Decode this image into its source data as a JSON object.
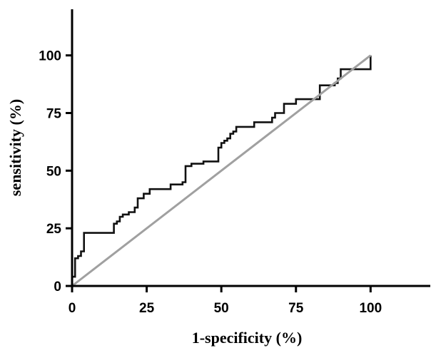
{
  "chart_data": {
    "type": "line",
    "xlabel": "1-specificity (%)",
    "ylabel": "sensitivity (%)",
    "xlim": [
      0,
      120
    ],
    "ylim": [
      0,
      120
    ],
    "xticks": [
      0,
      25,
      50,
      75,
      100
    ],
    "yticks": [
      0,
      25,
      50,
      75,
      100
    ],
    "grid": false,
    "series": [
      {
        "color": "#111111",
        "step": true,
        "x": [
          0,
          0,
          1,
          1,
          2,
          2,
          3,
          3,
          4,
          4,
          14,
          14,
          15,
          15,
          16,
          16,
          17,
          17,
          19,
          19,
          21,
          21,
          22,
          22,
          24,
          24,
          26,
          26,
          31,
          31,
          33,
          33,
          37,
          37,
          38,
          38,
          40,
          40,
          44,
          44,
          49,
          49,
          50,
          50,
          51,
          51,
          52,
          52,
          53,
          53,
          54,
          54,
          55,
          55,
          61,
          61,
          67,
          67,
          68,
          68,
          69,
          69,
          71,
          71,
          72,
          72,
          75,
          75,
          83,
          83,
          88,
          88,
          89,
          89,
          90,
          90,
          100,
          100
        ],
        "y": [
          0,
          4,
          4,
          12,
          12,
          13,
          13,
          15,
          15,
          23,
          23,
          27,
          27,
          28,
          28,
          30,
          30,
          31,
          31,
          32,
          32,
          34,
          34,
          38,
          38,
          40,
          40,
          42,
          42,
          42,
          42,
          44,
          44,
          45,
          45,
          52,
          52,
          53,
          53,
          54,
          54,
          60,
          60,
          62,
          62,
          63,
          63,
          64,
          64,
          66,
          66,
          67,
          67,
          69,
          69,
          71,
          71,
          73,
          73,
          75,
          75,
          75,
          75,
          79,
          79,
          79,
          79,
          81,
          81,
          87,
          87,
          88,
          88,
          90,
          90,
          94,
          94,
          100
        ]
      },
      {
        "color": "#a0a0a0",
        "x": [
          0,
          100
        ],
        "y": [
          0,
          100
        ]
      }
    ]
  }
}
